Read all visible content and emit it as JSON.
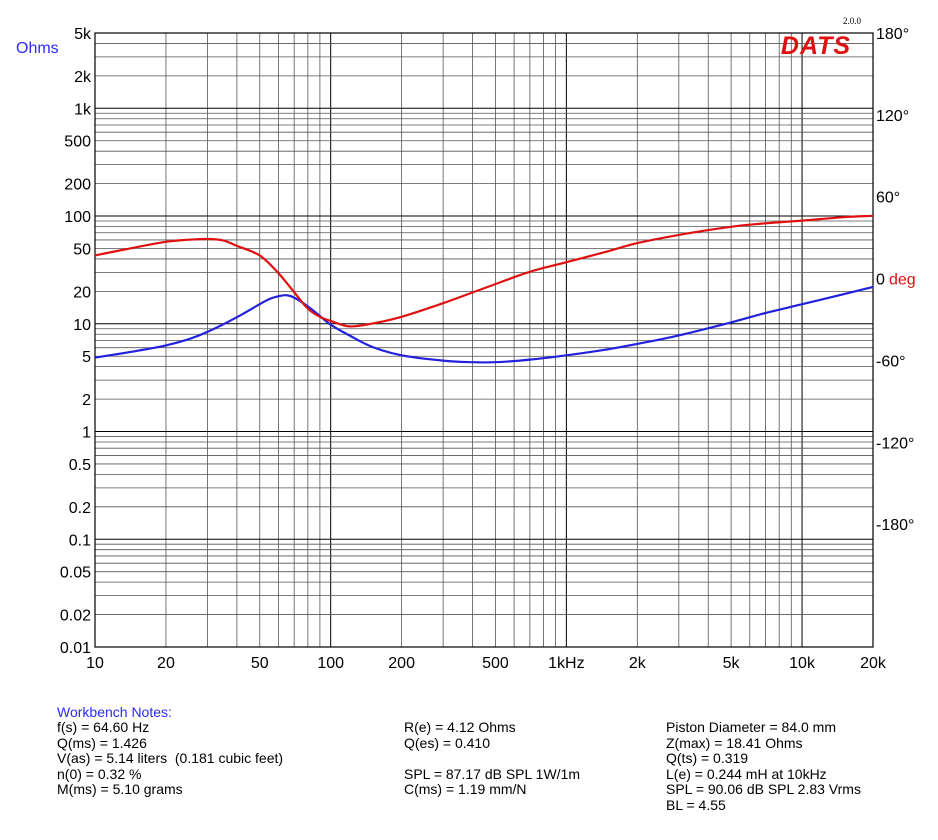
{
  "chart_data": {
    "type": "line",
    "logo": {
      "text": "DATS",
      "version": "2.0.0",
      "color": "#e01010"
    },
    "x_axis": {
      "scale": "log",
      "range": [
        10,
        20000
      ],
      "tick_labels": [
        {
          "value": 10,
          "label": "10"
        },
        {
          "value": 20,
          "label": "20"
        },
        {
          "value": 50,
          "label": "50"
        },
        {
          "value": 100,
          "label": "100"
        },
        {
          "value": 200,
          "label": "200"
        },
        {
          "value": 500,
          "label": "500"
        },
        {
          "value": 1000,
          "label": "1kHz"
        },
        {
          "value": 2000,
          "label": "2k"
        },
        {
          "value": 5000,
          "label": "5k"
        },
        {
          "value": 10000,
          "label": "10k"
        },
        {
          "value": 20000,
          "label": "20k"
        }
      ]
    },
    "y_left": {
      "label": "Ohms",
      "label_color": "#2b2bff",
      "scale": "log",
      "range": [
        0.01,
        5000
      ],
      "tick_labels": [
        {
          "value": 5000,
          "label": "5k"
        },
        {
          "value": 2000,
          "label": "2k"
        },
        {
          "value": 1000,
          "label": "1k"
        },
        {
          "value": 500,
          "label": "500"
        },
        {
          "value": 200,
          "label": "200"
        },
        {
          "value": 100,
          "label": "100"
        },
        {
          "value": 50,
          "label": "50"
        },
        {
          "value": 20,
          "label": "20"
        },
        {
          "value": 10,
          "label": "10"
        },
        {
          "value": 5,
          "label": "5"
        },
        {
          "value": 2,
          "label": "2"
        },
        {
          "value": 1,
          "label": "1"
        },
        {
          "value": 0.5,
          "label": "0.5"
        },
        {
          "value": 0.2,
          "label": "0.2"
        },
        {
          "value": 0.1,
          "label": "0.1"
        },
        {
          "value": 0.05,
          "label": "0.05"
        },
        {
          "value": 0.02,
          "label": "0.02"
        },
        {
          "value": 0.01,
          "label": "0.01"
        }
      ]
    },
    "y_right": {
      "unit_label": "deg",
      "label_color": "#e01010",
      "range": [
        -270,
        180
      ],
      "tick_labels": [
        {
          "value": 180,
          "label": "180°"
        },
        {
          "value": 120,
          "label": "120°"
        },
        {
          "value": 60,
          "label": "60°"
        },
        {
          "value": 0,
          "label": "0"
        },
        {
          "value": -60,
          "label": "-60°"
        },
        {
          "value": -120,
          "label": "-120°"
        },
        {
          "value": -180,
          "label": "-180°"
        }
      ]
    },
    "grid": true,
    "series": [
      {
        "axis": "left",
        "color": "#2222dd",
        "x": [
          10,
          15,
          20,
          25,
          30,
          40,
          50,
          55,
          60,
          64.6,
          70,
          80,
          90,
          100,
          120,
          150,
          200,
          300,
          400,
          500,
          700,
          1000,
          1500,
          2000,
          3000,
          5000,
          7000,
          10000,
          15000,
          20000
        ],
        "y": [
          4.85,
          5.6,
          6.3,
          7.2,
          8.4,
          11.5,
          15.2,
          17.0,
          18.0,
          18.41,
          17.5,
          14.5,
          11.8,
          9.8,
          7.8,
          6.1,
          5.1,
          4.55,
          4.4,
          4.4,
          4.65,
          5.1,
          5.8,
          6.5,
          7.8,
          10.3,
          12.6,
          15.2,
          18.8,
          22.0
        ]
      },
      {
        "axis": "right",
        "color": "#e01010",
        "x": [
          10,
          15,
          20,
          25,
          30,
          35,
          40,
          50,
          60,
          70,
          80,
          90,
          100,
          120,
          150,
          200,
          300,
          500,
          700,
          1000,
          1500,
          2000,
          3000,
          5000,
          7000,
          10000,
          15000,
          20000
        ],
        "y": [
          17,
          23,
          27,
          28.5,
          29,
          28,
          24,
          17,
          4,
          -10,
          -22,
          -28,
          -31,
          -35,
          -33,
          -28,
          -18,
          -4,
          5,
          12,
          20,
          26,
          32,
          38,
          40.5,
          42.5,
          45,
          46
        ]
      }
    ]
  },
  "notes": {
    "title": "Workbench Notes:",
    "col1": [
      "f(s) = 64.60 Hz",
      "Q(ms) = 1.426",
      "V(as) = 5.14 liters  (0.181 cubic feet)",
      "n(0) = 0.32 %",
      "M(ms) = 5.10 grams"
    ],
    "col2": [
      "R(e) = 4.12 Ohms",
      "Q(es) = 0.410",
      "",
      "SPL = 87.17 dB SPL 1W/1m",
      "C(ms) = 1.19 mm/N"
    ],
    "col3": [
      "Piston Diameter = 84.0 mm",
      "Z(max) = 18.41 Ohms",
      "Q(ts) = 0.319",
      "L(e) = 0.244 mH at 10kHz",
      "SPL = 90.06 dB SPL 2.83 Vrms",
      "BL = 4.55"
    ]
  }
}
